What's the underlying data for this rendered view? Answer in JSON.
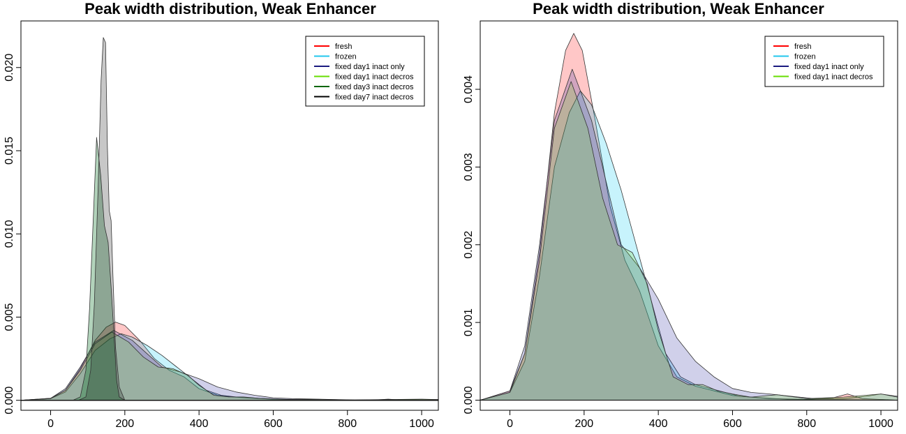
{
  "chart_data": [
    {
      "type": "area",
      "title": "Peak width distribution, Weak Enhancer",
      "xlabel": "",
      "ylabel": "",
      "xlim": [
        -80,
        1045
      ],
      "ylim": [
        -0.0006,
        0.0228
      ],
      "xticks": [
        0,
        200,
        400,
        600,
        800,
        1000
      ],
      "xtick_labels": [
        "0",
        "200",
        "400",
        "600",
        "800",
        "1000"
      ],
      "yticks": [
        0,
        0.005,
        0.01,
        0.015,
        0.02
      ],
      "ytick_labels": [
        "0.000",
        "0.005",
        "0.010",
        "0.015",
        "0.020"
      ],
      "grid": false,
      "legend_position": "top-right",
      "series": [
        {
          "name": "fresh",
          "color": "#ff0000",
          "fill": "rgba(255,0,0,0.22)",
          "x": [
            -80,
            0,
            40,
            80,
            120,
            150,
            175,
            200,
            240,
            280,
            320,
            360,
            400,
            450,
            500,
            550,
            600,
            650,
            700,
            800,
            880,
            910,
            940,
            1045
          ],
          "y": [
            0,
            0.00012,
            0.0006,
            0.0019,
            0.0036,
            0.0044,
            0.0047,
            0.0045,
            0.0036,
            0.0025,
            0.0018,
            0.0014,
            0.0007,
            0.0003,
            0.00018,
            0.00012,
            6e-05,
            4e-05,
            2e-05,
            1e-05,
            3e-05,
            7e-05,
            2e-05,
            0
          ]
        },
        {
          "name": "frozen",
          "color": "#22c7ee",
          "fill": "rgba(0,200,240,0.22)",
          "x": [
            -80,
            0,
            40,
            80,
            120,
            160,
            190,
            220,
            260,
            300,
            340,
            380,
            420,
            460,
            500,
            540,
            580,
            620,
            680,
            750,
            1045
          ],
          "y": [
            0,
            0.0001,
            0.0005,
            0.0016,
            0.003,
            0.0037,
            0.004,
            0.0038,
            0.0033,
            0.0027,
            0.002,
            0.0013,
            0.0006,
            0.0003,
            0.0002,
            0.00015,
            0.0001,
            5e-05,
            3e-05,
            1e-05,
            0
          ]
        },
        {
          "name": "fixed day1 inact only",
          "color": "#1a1a80",
          "fill": "rgba(40,40,160,0.22)",
          "x": [
            -80,
            0,
            40,
            80,
            120,
            170,
            220,
            260,
            300,
            350,
            400,
            450,
            500,
            550,
            600,
            650,
            700,
            760,
            820,
            900,
            1000,
            1045
          ],
          "y": [
            0,
            0.00012,
            0.0007,
            0.002,
            0.0035,
            0.0042,
            0.0036,
            0.0028,
            0.002,
            0.0017,
            0.0013,
            0.0008,
            0.0005,
            0.0003,
            0.00015,
            0.0001,
            8e-05,
            5e-05,
            2e-05,
            2e-05,
            5e-05,
            4e-05
          ]
        },
        {
          "name": "fixed day1 inact decros",
          "color": "#66dd00",
          "fill": "rgba(120,220,40,0.22)",
          "x": [
            -80,
            0,
            40,
            80,
            120,
            165,
            210,
            250,
            290,
            330,
            370,
            400,
            440,
            480,
            520,
            560,
            600,
            650,
            720,
            800,
            900,
            1000,
            1045
          ],
          "y": [
            0,
            0.0001,
            0.0006,
            0.0018,
            0.0034,
            0.0041,
            0.0035,
            0.0026,
            0.002,
            0.0019,
            0.0015,
            0.0009,
            0.0003,
            0.0002,
            0.0002,
            0.00012,
            8e-05,
            4e-05,
            6e-05,
            2e-05,
            4e-05,
            7e-05,
            4e-05
          ]
        },
        {
          "name": "fixed day3 inact decros",
          "color": "#006600",
          "fill": "rgba(0,110,30,0.30)",
          "x": [
            -80,
            60,
            80,
            95,
            105,
            115,
            124,
            135,
            145,
            155,
            163,
            170,
            178,
            185,
            200,
            1045
          ],
          "y": [
            0,
            0,
            0.0002,
            0.0018,
            0.0055,
            0.011,
            0.0158,
            0.0135,
            0.0105,
            0.0095,
            0.0068,
            0.0042,
            0.0012,
            0.0002,
            0,
            0
          ]
        },
        {
          "name": "fixed day7 inact decros",
          "color": "#000000",
          "fill": "rgba(30,30,30,0.25)",
          "x": [
            -80,
            75,
            95,
            108,
            118,
            128,
            136,
            142,
            148,
            153,
            158,
            163,
            168,
            175,
            185,
            200,
            1045
          ],
          "y": [
            0,
            0,
            0.0002,
            0.0018,
            0.0058,
            0.0128,
            0.0192,
            0.0218,
            0.0215,
            0.0152,
            0.0114,
            0.0108,
            0.0075,
            0.0032,
            0.0008,
            0,
            0
          ]
        }
      ]
    },
    {
      "type": "area",
      "title": "Peak width distribution, Weak Enhancer",
      "xlabel": "",
      "ylabel": "",
      "xlim": [
        -80,
        1045
      ],
      "ylim": [
        -0.00013,
        0.00488
      ],
      "xticks": [
        0,
        200,
        400,
        600,
        800,
        1000
      ],
      "xtick_labels": [
        "0",
        "200",
        "400",
        "600",
        "800",
        "1000"
      ],
      "yticks": [
        0,
        0.001,
        0.002,
        0.003,
        0.004
      ],
      "ytick_labels": [
        "0.000",
        "0.001",
        "0.002",
        "0.003",
        "0.004"
      ],
      "grid": false,
      "legend_position": "top-right",
      "series": [
        {
          "name": "fresh",
          "color": "#ff0000",
          "fill": "rgba(255,0,0,0.22)",
          "x": [
            -80,
            0,
            40,
            80,
            120,
            150,
            172,
            195,
            230,
            270,
            310,
            350,
            400,
            450,
            500,
            550,
            600,
            650,
            700,
            800,
            870,
            910,
            950,
            1045
          ],
          "y": [
            0,
            0.00012,
            0.0006,
            0.0019,
            0.0037,
            0.0045,
            0.00472,
            0.0045,
            0.0036,
            0.0025,
            0.0018,
            0.0014,
            0.0007,
            0.0003,
            0.00018,
            0.00012,
            6e-05,
            4e-05,
            2e-05,
            1e-05,
            3e-05,
            8e-05,
            2e-05,
            0
          ]
        },
        {
          "name": "frozen",
          "color": "#22c7ee",
          "fill": "rgba(0,200,240,0.22)",
          "x": [
            -80,
            0,
            40,
            80,
            120,
            160,
            190,
            220,
            260,
            300,
            340,
            380,
            420,
            460,
            500,
            540,
            580,
            620,
            680,
            750,
            1045
          ],
          "y": [
            0,
            0.0001,
            0.0005,
            0.0016,
            0.003,
            0.0037,
            0.00398,
            0.0038,
            0.0033,
            0.0027,
            0.002,
            0.0013,
            0.0006,
            0.0003,
            0.0002,
            0.00015,
            0.0001,
            5e-05,
            3e-05,
            1e-05,
            0
          ]
        },
        {
          "name": "fixed day1 inact only",
          "color": "#1a1a80",
          "fill": "rgba(40,40,160,0.22)",
          "x": [
            -80,
            0,
            40,
            80,
            120,
            168,
            220,
            260,
            300,
            350,
            400,
            450,
            500,
            550,
            600,
            650,
            700,
            760,
            820,
            900,
            960,
            1000,
            1045
          ],
          "y": [
            0,
            0.00012,
            0.0007,
            0.002,
            0.0036,
            0.00426,
            0.0036,
            0.0028,
            0.002,
            0.0017,
            0.0013,
            0.0008,
            0.0005,
            0.0003,
            0.00015,
            0.0001,
            8e-05,
            5e-05,
            2e-05,
            2e-05,
            5e-05,
            8e-05,
            5e-05
          ]
        },
        {
          "name": "fixed day1 inact decros",
          "color": "#66dd00",
          "fill": "rgba(120,220,40,0.22)",
          "x": [
            -80,
            0,
            40,
            80,
            120,
            165,
            210,
            250,
            290,
            330,
            370,
            400,
            440,
            480,
            520,
            560,
            600,
            650,
            720,
            800,
            900,
            1000,
            1045
          ],
          "y": [
            0,
            0.0001,
            0.0006,
            0.0018,
            0.0035,
            0.0041,
            0.0035,
            0.0026,
            0.002,
            0.0019,
            0.0015,
            0.0009,
            0.0003,
            0.0002,
            0.0002,
            0.00012,
            8e-05,
            4e-05,
            7e-05,
            2e-05,
            4e-05,
            8e-05,
            4e-05
          ]
        }
      ]
    }
  ]
}
